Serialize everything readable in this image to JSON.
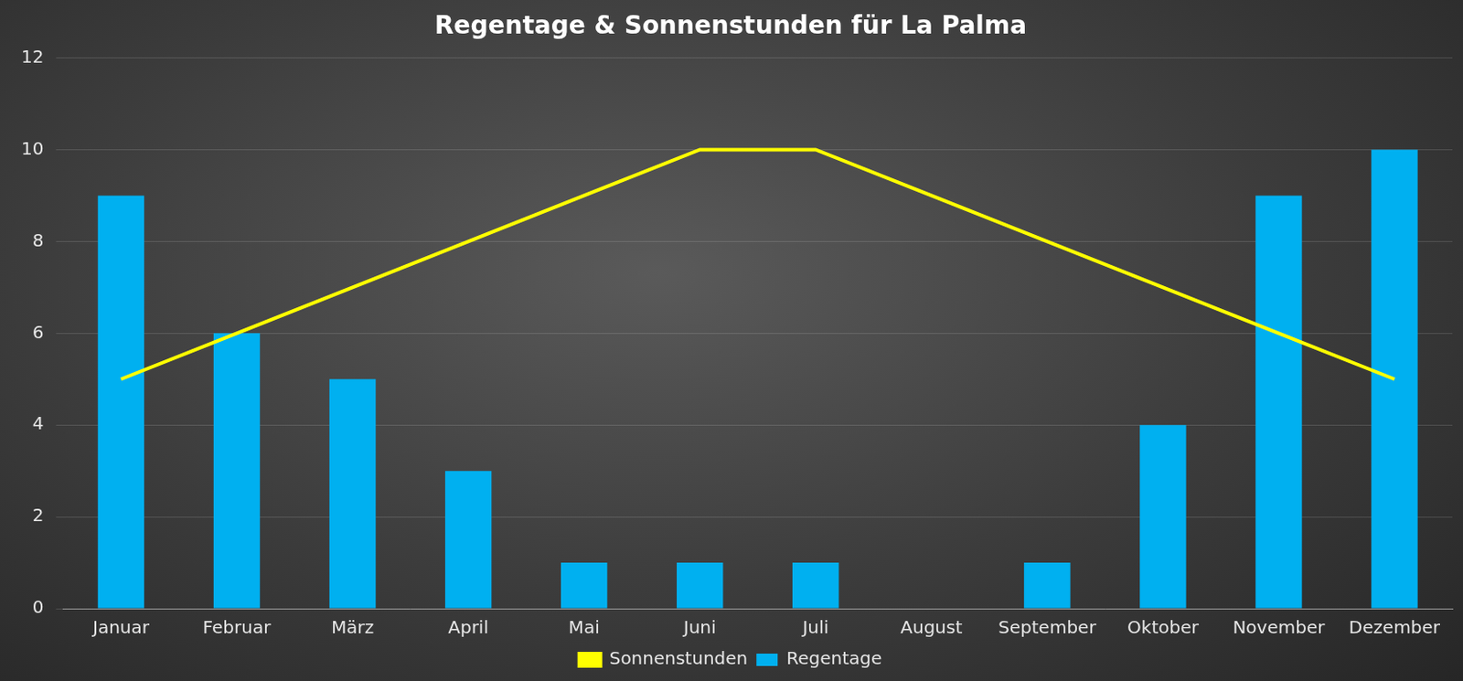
{
  "chart_data": {
    "type": "bar",
    "title": "Regentage & Sonnenstunden für La Palma",
    "categories": [
      "Januar",
      "Februar",
      "März",
      "April",
      "Mai",
      "Juni",
      "Juli",
      "August",
      "September",
      "Oktober",
      "November",
      "Dezember"
    ],
    "series": [
      {
        "name": "Regentage",
        "type": "bar",
        "color": "#00b0f0",
        "values": [
          9,
          6,
          5,
          3,
          1,
          1,
          1,
          0,
          1,
          4,
          9,
          10
        ]
      },
      {
        "name": "Sonnenstunden",
        "type": "line",
        "color": "#ffff00",
        "values": [
          5,
          6,
          7,
          8,
          9,
          10,
          10,
          9,
          8,
          7,
          6,
          5
        ]
      }
    ],
    "ylim": [
      0,
      12
    ],
    "yticks": [
      0,
      2,
      4,
      6,
      8,
      10,
      12
    ],
    "grid": true,
    "legend": "bottom"
  }
}
